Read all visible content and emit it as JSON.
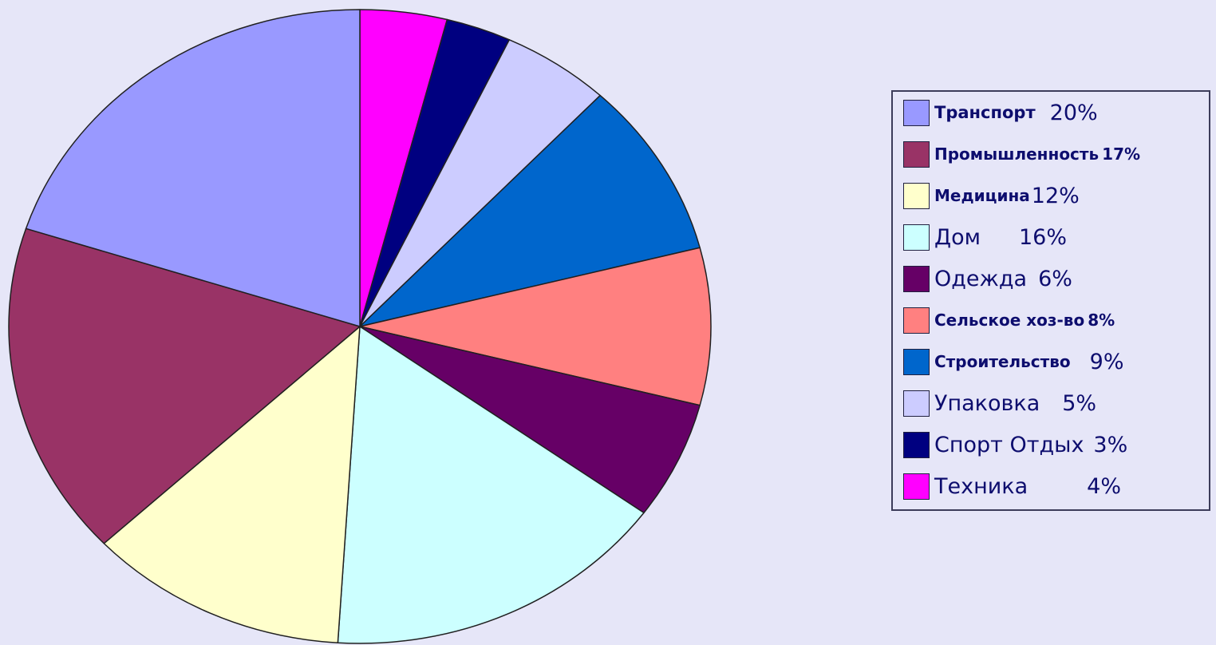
{
  "chart_data": {
    "type": "pie",
    "title": "",
    "legend_position": "right",
    "start": "12 o'clock, clockwise",
    "slices": [
      {
        "name": "Техника",
        "value": 4,
        "label": "4%",
        "color": "#ff00ff"
      },
      {
        "name": "Спорт Отдых",
        "value": 3,
        "label": "3%",
        "color": "#000080"
      },
      {
        "name": "Упаковка",
        "value": 5,
        "label": "5%",
        "color": "#ccccff"
      },
      {
        "name": "Строительство",
        "value": 9,
        "label": "9%",
        "color": "#0066cc"
      },
      {
        "name": "Сельское хоз-во",
        "value": 8,
        "label": "8%",
        "color": "#ff8080"
      },
      {
        "name": "Одежда",
        "value": 6,
        "label": "6%",
        "color": "#660066"
      },
      {
        "name": "Дом",
        "value": 16,
        "label": "16%",
        "color": "#ccffff"
      },
      {
        "name": "Медицина",
        "value": 12,
        "label": "12%",
        "color": "#ffffcc"
      },
      {
        "name": "Промышленность",
        "value": 17,
        "label": "17%",
        "color": "#993366"
      },
      {
        "name": "Транспорт",
        "value": 20,
        "label": "20%",
        "color": "#9999ff"
      }
    ],
    "legend": [
      {
        "name": "Транспорт",
        "pct": "20%",
        "color": "#9999ff"
      },
      {
        "name": "Промышленность",
        "pct": "17%",
        "color": "#993366"
      },
      {
        "name": "Медицина",
        "pct": "12%",
        "color": "#ffffcc"
      },
      {
        "name": "Дом",
        "pct": "16%",
        "color": "#ccffff"
      },
      {
        "name": "Одежда",
        "pct": "6%",
        "color": "#660066"
      },
      {
        "name": "Сельское хоз-во",
        "pct": "8%",
        "color": "#ff8080"
      },
      {
        "name": "Строительство",
        "pct": "9%",
        "color": "#0066cc"
      },
      {
        "name": "Упаковка",
        "pct": "5%",
        "color": "#ccccff"
      },
      {
        "name": "Спорт Отдых",
        "pct": "3%",
        "color": "#000080"
      },
      {
        "name": "Техника",
        "pct": "4%",
        "color": "#ff00ff"
      }
    ]
  }
}
